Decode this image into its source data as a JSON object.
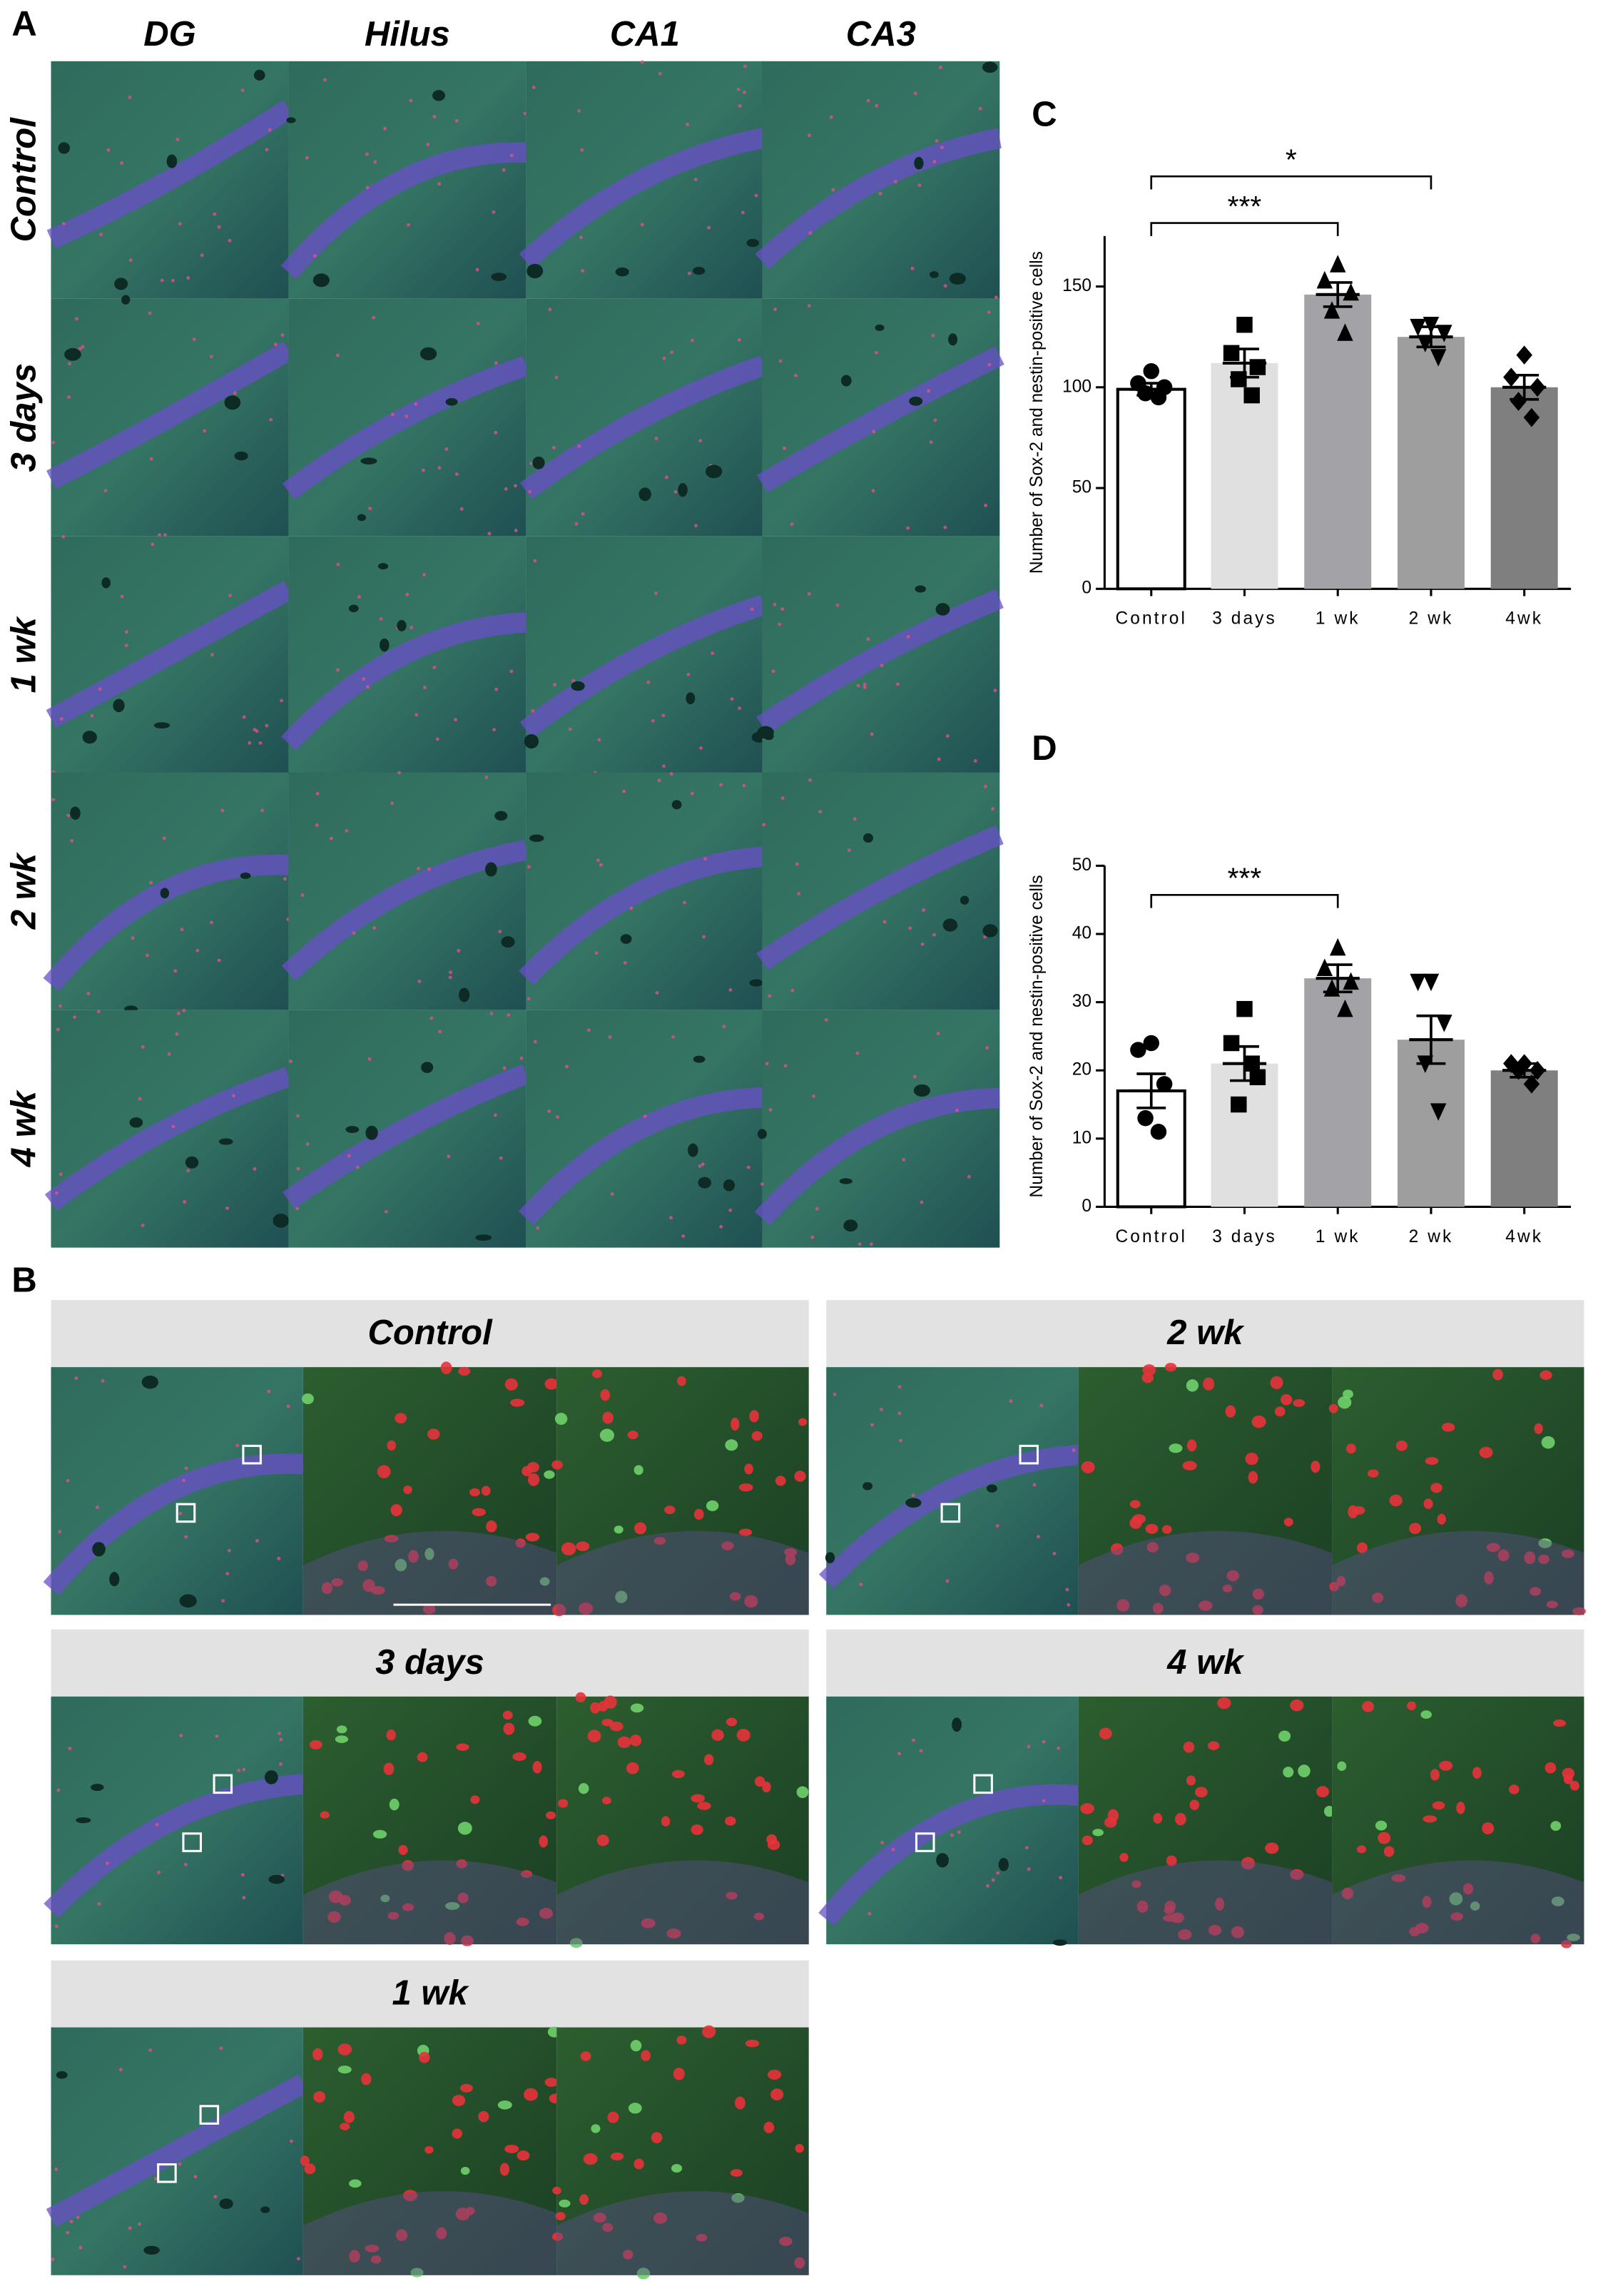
{
  "figure": {
    "panel_labels": [
      "A",
      "B",
      "C",
      "D"
    ]
  },
  "panel_a": {
    "columns": [
      "DG",
      "Hilus",
      "CA1",
      "CA3"
    ],
    "rows": [
      "Control",
      "3 days",
      "1 wk",
      "2 wk",
      "4 wk"
    ]
  },
  "panel_b": {
    "headers": [
      "Control",
      "2 wk",
      "3 days",
      "4 wk",
      "1 wk"
    ]
  },
  "chart_data": [
    {
      "type": "bar",
      "y_label": "Number of Sox-2 and nestin-positive cells",
      "categories": [
        "Control",
        "3 days",
        "1 wk",
        "2 wk",
        "4wk"
      ],
      "values": [
        99,
        112,
        146,
        125,
        100
      ],
      "errors": [
        3,
        7,
        6,
        5,
        6
      ],
      "points": [
        [
          108,
          102,
          100,
          97,
          95
        ],
        [
          131,
          117,
          110,
          104,
          96
        ],
        [
          161,
          153,
          147,
          138,
          127
        ],
        [
          131,
          130,
          127,
          122,
          115
        ],
        [
          116,
          105,
          100,
          93,
          85
        ]
      ],
      "colors": [
        "#ffffff",
        "#e0e0e0",
        "#a3a3a7",
        "#9e9e9e",
        "#7f7f7f"
      ],
      "markers": [
        "circle",
        "square",
        "triangle",
        "triangle-down",
        "diamond"
      ],
      "ylim": [
        0,
        175
      ],
      "yticks": [
        0,
        50,
        100,
        150
      ],
      "annotations": [
        "***",
        "*"
      ]
    },
    {
      "type": "bar",
      "y_label": "Number of Sox-2 and nestin-positive cells",
      "categories": [
        "Control",
        "3 days",
        "1 wk",
        "2 wk",
        "4wk"
      ],
      "values": [
        17,
        21,
        33.5,
        24.5,
        20
      ],
      "errors": [
        2.5,
        2.5,
        2,
        3.5,
        1
      ],
      "points": [
        [
          24,
          23,
          18,
          13,
          11
        ],
        [
          29,
          24,
          19,
          15,
          21
        ],
        [
          38,
          35,
          33,
          32,
          29
        ],
        [
          33,
          33,
          27,
          21,
          14
        ],
        [
          21,
          21,
          20,
          20,
          18
        ]
      ],
      "colors": [
        "#ffffff",
        "#e0e0e0",
        "#a3a3a7",
        "#9e9e9e",
        "#7f7f7f"
      ],
      "markers": [
        "circle",
        "square",
        "triangle",
        "triangle-down",
        "diamond"
      ],
      "ylim": [
        0,
        50
      ],
      "yticks": [
        0,
        10,
        20,
        30,
        40,
        50
      ],
      "annotations": [
        "***"
      ]
    }
  ]
}
